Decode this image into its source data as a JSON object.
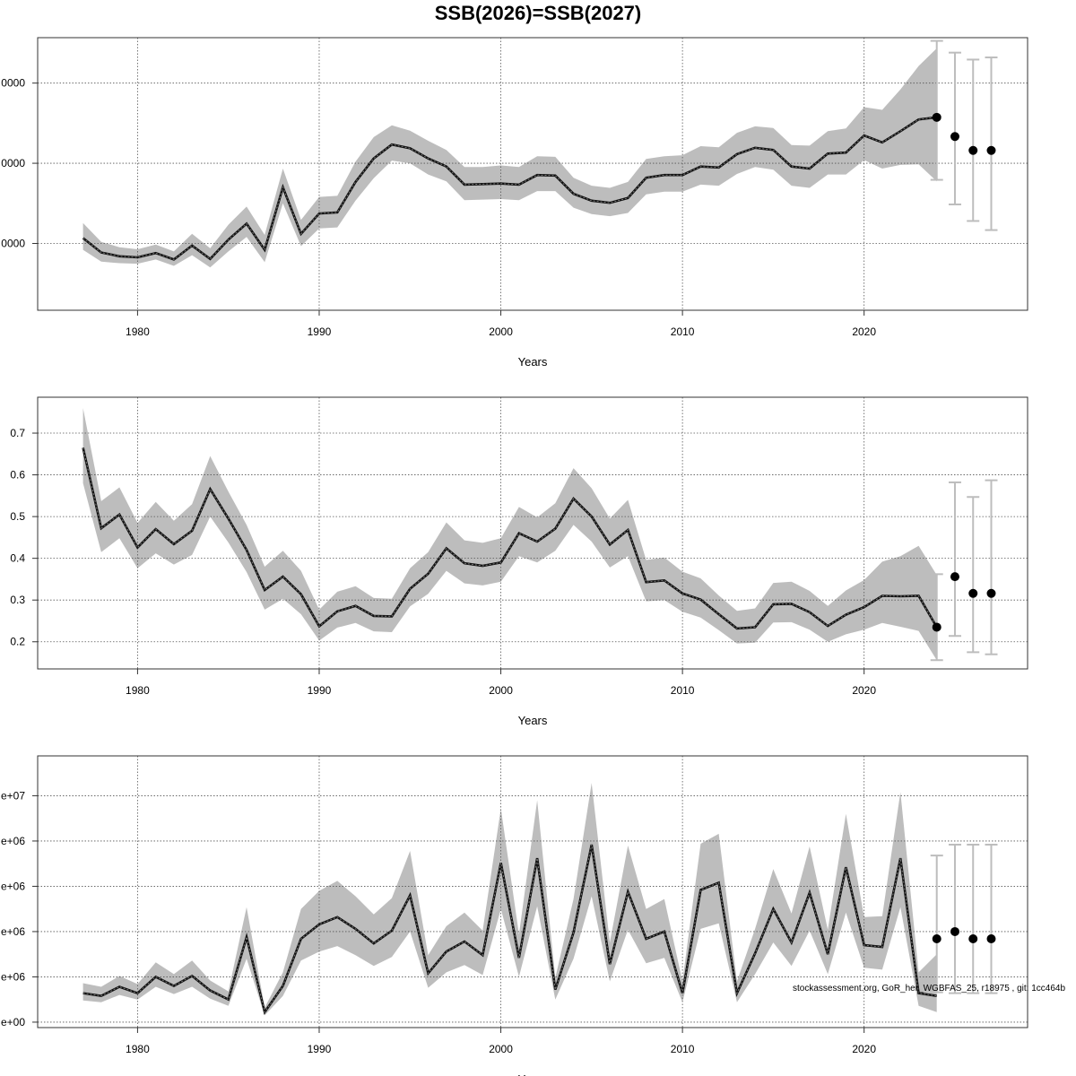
{
  "page_title": "SSB(2026)=SSB(2027)",
  "footer_text": "stockassessment.org, GoR_her_WGBFAS_25, r18975 , git: 1cc464b",
  "colors": {
    "band": "#bdbdbd",
    "line": "#000000",
    "errorbar": "#bdbdbd",
    "grid": "#555555"
  },
  "chart_data": [
    {
      "type": "line",
      "name": "ssb",
      "xlabel": "Years",
      "xlim": [
        1974.5,
        2029
      ],
      "ylim": [
        47500,
        98500
      ],
      "x_ticks": [
        1980,
        1990,
        2000,
        2010,
        2020
      ],
      "y_ticks": [
        {
          "value": 60000,
          "label": "0000"
        },
        {
          "value": 75000,
          "label": "0000"
        },
        {
          "value": 90000,
          "label": "0000"
        }
      ],
      "x": [
        1977,
        1978,
        1979,
        1980,
        1981,
        1982,
        1983,
        1984,
        1985,
        1986,
        1987,
        1988,
        1989,
        1990,
        1991,
        1992,
        1993,
        1994,
        1995,
        1996,
        1997,
        1998,
        1999,
        2000,
        2001,
        2002,
        2003,
        2004,
        2005,
        2006,
        2007,
        2008,
        2009,
        2010,
        2011,
        2012,
        2013,
        2014,
        2015,
        2016,
        2017,
        2018,
        2019,
        2020,
        2021,
        2022,
        2023,
        2024
      ],
      "estimate": [
        61000,
        58300,
        57600,
        57400,
        58200,
        57000,
        59600,
        57100,
        60700,
        63700,
        58800,
        70500,
        61800,
        65600,
        65800,
        71500,
        75900,
        78500,
        77800,
        75900,
        74400,
        71000,
        71100,
        71200,
        71000,
        72800,
        72700,
        69300,
        68000,
        67600,
        68500,
        72300,
        72800,
        72800,
        74400,
        74200,
        76700,
        77900,
        77500,
        74400,
        74000,
        76800,
        77000,
        80200,
        78900,
        81000,
        83200,
        83600
      ],
      "lower": [
        58800,
        56600,
        56300,
        56200,
        57000,
        55800,
        57800,
        55500,
        58500,
        61200,
        56500,
        67500,
        59500,
        62800,
        63000,
        68000,
        72200,
        75500,
        75000,
        72900,
        71600,
        68100,
        68200,
        68300,
        68100,
        69800,
        69800,
        66700,
        65500,
        65100,
        65700,
        69200,
        69700,
        69700,
        71000,
        70800,
        73000,
        74300,
        73800,
        70800,
        70400,
        72900,
        72900,
        75600,
        74000,
        74700,
        74800,
        71600
      ],
      "upper": [
        63800,
        60300,
        59300,
        58900,
        59800,
        58500,
        61800,
        59100,
        63500,
        66900,
        61600,
        74000,
        64400,
        68700,
        68900,
        75300,
        79900,
        82100,
        81100,
        79200,
        77500,
        74300,
        74300,
        74600,
        74300,
        76300,
        76200,
        72300,
        70800,
        70400,
        71500,
        75800,
        76300,
        76500,
        78200,
        78000,
        80700,
        81900,
        81600,
        78400,
        78300,
        81000,
        81500,
        85500,
        85000,
        88800,
        93200,
        96500
      ],
      "forecast": {
        "x": [
          2024,
          2025,
          2026,
          2027
        ],
        "median": [
          83600,
          80000,
          77400,
          77400
        ],
        "lower": [
          71900,
          67300,
          64200,
          62500
        ],
        "upper": [
          97900,
          95700,
          94400,
          94800
        ]
      }
    },
    {
      "type": "line",
      "name": "fbar",
      "xlabel": "Years",
      "xlim": [
        1974.5,
        2029
      ],
      "ylim": [
        0.135,
        0.786
      ],
      "x_ticks": [
        1980,
        1990,
        2000,
        2010,
        2020
      ],
      "y_ticks": [
        {
          "value": 0.2,
          "label": "0.2"
        },
        {
          "value": 0.3,
          "label": "0.3"
        },
        {
          "value": 0.4,
          "label": "0.4"
        },
        {
          "value": 0.5,
          "label": "0.5"
        },
        {
          "value": 0.6,
          "label": "0.6"
        },
        {
          "value": 0.7,
          "label": "0.7"
        }
      ],
      "x": [
        1977,
        1978,
        1979,
        1980,
        1981,
        1982,
        1983,
        1984,
        1985,
        1986,
        1987,
        1988,
        1989,
        1990,
        1991,
        1992,
        1993,
        1994,
        1995,
        1996,
        1997,
        1998,
        1999,
        2000,
        2001,
        2002,
        2003,
        2004,
        2005,
        2006,
        2007,
        2008,
        2009,
        2010,
        2011,
        2012,
        2013,
        2014,
        2015,
        2016,
        2017,
        2018,
        2019,
        2020,
        2021,
        2022,
        2023,
        2024
      ],
      "estimate": [
        0.665,
        0.472,
        0.505,
        0.426,
        0.47,
        0.434,
        0.466,
        0.566,
        0.495,
        0.42,
        0.324,
        0.356,
        0.314,
        0.237,
        0.273,
        0.286,
        0.262,
        0.261,
        0.327,
        0.363,
        0.424,
        0.388,
        0.382,
        0.39,
        0.46,
        0.44,
        0.471,
        0.543,
        0.5,
        0.433,
        0.468,
        0.343,
        0.347,
        0.316,
        0.301,
        0.266,
        0.232,
        0.235,
        0.29,
        0.291,
        0.271,
        0.238,
        0.265,
        0.283,
        0.31,
        0.309,
        0.31,
        0.235
      ],
      "lower": [
        0.58,
        0.415,
        0.448,
        0.376,
        0.412,
        0.385,
        0.408,
        0.5,
        0.438,
        0.367,
        0.277,
        0.303,
        0.266,
        0.203,
        0.234,
        0.245,
        0.225,
        0.223,
        0.285,
        0.315,
        0.37,
        0.34,
        0.335,
        0.344,
        0.405,
        0.39,
        0.418,
        0.48,
        0.44,
        0.378,
        0.405,
        0.297,
        0.3,
        0.272,
        0.258,
        0.228,
        0.196,
        0.198,
        0.246,
        0.247,
        0.229,
        0.2,
        0.218,
        0.229,
        0.245,
        0.236,
        0.226,
        0.156
      ],
      "upper": [
        0.76,
        0.537,
        0.57,
        0.485,
        0.535,
        0.49,
        0.53,
        0.645,
        0.56,
        0.48,
        0.38,
        0.418,
        0.37,
        0.277,
        0.32,
        0.333,
        0.305,
        0.303,
        0.376,
        0.415,
        0.486,
        0.443,
        0.437,
        0.448,
        0.523,
        0.498,
        0.532,
        0.616,
        0.568,
        0.495,
        0.54,
        0.396,
        0.402,
        0.368,
        0.352,
        0.311,
        0.274,
        0.28,
        0.341,
        0.344,
        0.322,
        0.286,
        0.323,
        0.348,
        0.392,
        0.405,
        0.43,
        0.36
      ],
      "forecast": {
        "x": [
          2024,
          2025,
          2026,
          2027
        ],
        "median": [
          0.235,
          0.356,
          0.316,
          0.316
        ],
        "lower": [
          0.156,
          0.214,
          0.175,
          0.17
        ],
        "upper": [
          0.362,
          0.582,
          0.547,
          0.587
        ]
      }
    },
    {
      "type": "line",
      "name": "recruitment",
      "xlabel": "Years",
      "xlim": [
        1974.5,
        2029
      ],
      "ylim": [
        -600000,
        29400000
      ],
      "x_ticks": [
        1980,
        1990,
        2000,
        2010,
        2020
      ],
      "y_ticks": [
        {
          "value": 0,
          "label": "e+00"
        },
        {
          "value": 5000000,
          "label": "e+06"
        },
        {
          "value": 10000000,
          "label": "e+06"
        },
        {
          "value": 15000000,
          "label": "e+06"
        },
        {
          "value": 20000000,
          "label": "e+06"
        },
        {
          "value": 25000000,
          "label": "e+07"
        }
      ],
      "x": [
        1977,
        1978,
        1979,
        1980,
        1981,
        1982,
        1983,
        1984,
        1985,
        1986,
        1987,
        1988,
        1989,
        1990,
        1991,
        1992,
        1993,
        1994,
        1995,
        1996,
        1997,
        1998,
        1999,
        2000,
        2001,
        2002,
        2003,
        2004,
        2005,
        2006,
        2007,
        2008,
        2009,
        2010,
        2011,
        2012,
        2013,
        2014,
        2015,
        2016,
        2017,
        2018,
        2019,
        2020,
        2021,
        2022,
        2023,
        2024
      ],
      "estimate": [
        3200000,
        2900000,
        3900000,
        3200000,
        5000000,
        4000000,
        5100000,
        3500000,
        2500000,
        9400000,
        1100000,
        4000000,
        9200000,
        10800000,
        11600000,
        10300000,
        8700000,
        10100000,
        14000000,
        5400000,
        7800000,
        8900000,
        7400000,
        17600000,
        7100000,
        18100000,
        3600000,
        9900000,
        19600000,
        6400000,
        14400000,
        9200000,
        10000000,
        3200000,
        14600000,
        15400000,
        3200000,
        7600000,
        12500000,
        8800000,
        14300000,
        7500000,
        17100000,
        8500000,
        8300000,
        18100000,
        3200000,
        2900000
      ],
      "lower": [
        2400000,
        2200000,
        3000000,
        2500000,
        3900000,
        3100000,
        3900000,
        2600000,
        1800000,
        7000000,
        750000,
        2900000,
        6800000,
        7800000,
        8400000,
        7400000,
        6200000,
        7200000,
        10000000,
        3800000,
        5500000,
        6300000,
        5200000,
        12500000,
        5000000,
        12800000,
        2500000,
        7000000,
        13900000,
        4500000,
        10200000,
        6500000,
        7100000,
        2200000,
        10300000,
        10900000,
        2200000,
        5300000,
        8800000,
        6200000,
        10100000,
        5300000,
        12100000,
        6000000,
        5800000,
        12700000,
        1800000,
        1100000
      ],
      "upper": [
        4300000,
        3900000,
        5100000,
        4200000,
        6600000,
        5300000,
        6800000,
        4600000,
        3400000,
        12700000,
        1600000,
        5500000,
        12500000,
        14500000,
        15600000,
        13900000,
        11900000,
        13700000,
        18900000,
        7400000,
        10600000,
        12100000,
        10100000,
        23600000,
        9700000,
        24500000,
        4900000,
        13600000,
        26400000,
        8800000,
        19500000,
        12500000,
        13600000,
        4500000,
        19700000,
        20800000,
        4500000,
        10300000,
        16900000,
        12000000,
        19400000,
        10200000,
        23000000,
        11600000,
        11700000,
        25400000,
        5500000,
        7500000
      ],
      "forecast": {
        "x": [
          2024,
          2025,
          2026,
          2027
        ],
        "median": [
          9200000,
          10000000,
          9200000,
          9200000
        ],
        "lower": [
          3300000,
          3200000,
          3200000,
          3200000
        ],
        "upper": [
          18400000,
          19600000,
          19600000,
          19600000
        ]
      }
    }
  ]
}
